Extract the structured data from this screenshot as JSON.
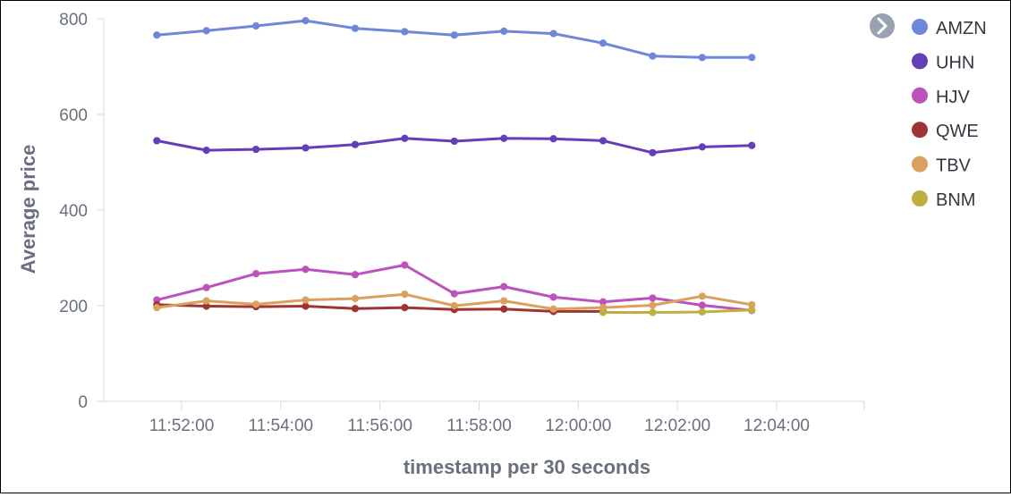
{
  "chart_data": {
    "type": "line",
    "xlabel": "timestamp per 30 seconds",
    "ylabel": "Average price",
    "ylim": [
      0,
      800
    ],
    "y_ticks": [
      "0",
      "200",
      "400",
      "600",
      "800"
    ],
    "x_ticks": [
      "11:52:00",
      "11:54:00",
      "11:56:00",
      "11:58:00",
      "12:00:00",
      "12:02:00",
      "12:04:00"
    ],
    "x": [
      "11:51:30",
      "11:52:30",
      "11:53:30",
      "11:54:30",
      "11:55:30",
      "11:56:30",
      "11:57:30",
      "11:58:30",
      "11:59:30",
      "12:00:30",
      "12:01:30",
      "12:02:30",
      "12:03:30"
    ],
    "legend_position": "top-right",
    "grid": false,
    "series": [
      {
        "name": "AMZN",
        "color": "#6f87d8",
        "values": [
          766,
          775,
          785,
          796,
          780,
          773,
          766,
          774,
          769,
          749,
          722,
          719,
          719
        ]
      },
      {
        "name": "UHN",
        "color": "#663db8",
        "values": [
          545,
          525,
          527,
          530,
          537,
          550,
          544,
          550,
          549,
          545,
          520,
          532,
          535
        ]
      },
      {
        "name": "HJV",
        "color": "#bc52bc",
        "values": [
          212,
          238,
          267,
          276,
          265,
          285,
          225,
          240,
          218,
          208,
          216,
          201,
          190
        ]
      },
      {
        "name": "QWE",
        "color": "#9e3533",
        "values": [
          202,
          199,
          198,
          199,
          194,
          196,
          192,
          193,
          188,
          188,
          null,
          null,
          null
        ]
      },
      {
        "name": "TBV",
        "color": "#daa05d",
        "values": [
          196,
          210,
          203,
          212,
          215,
          224,
          200,
          210,
          193,
          196,
          201,
          220,
          202
        ]
      },
      {
        "name": "BNM",
        "color": "#bfaf40",
        "x_start": 9,
        "values": [
          null,
          null,
          null,
          null,
          null,
          null,
          null,
          null,
          null,
          186,
          186,
          187,
          191
        ]
      }
    ]
  },
  "legend": {
    "toggle_icon": "chevron-right-icon"
  }
}
